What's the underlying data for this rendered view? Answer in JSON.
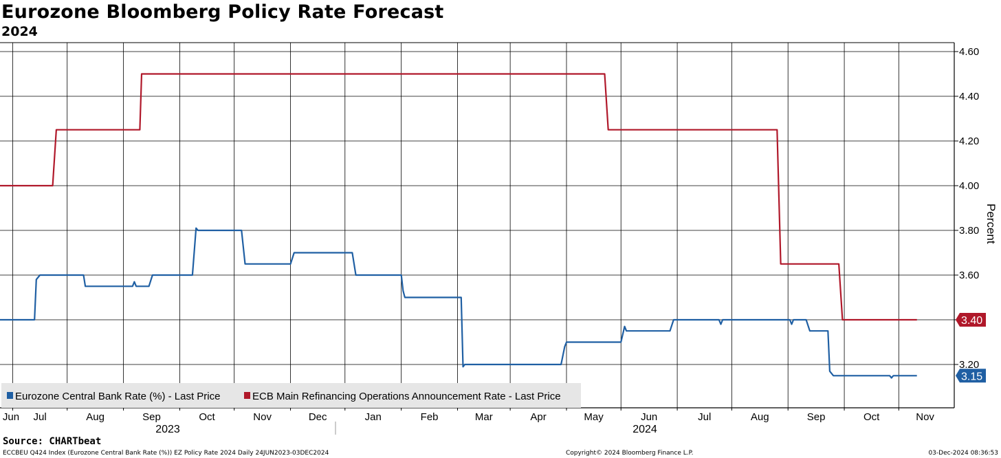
{
  "chart_data": {
    "type": "line",
    "title": "Eurozone Bloomberg Policy Rate Forecast",
    "subtitle": "2024",
    "ylabel": "Percent",
    "ylim": [
      3.05,
      4.63
    ],
    "yticks": [
      "4.60",
      "4.40",
      "4.20",
      "4.00",
      "3.80",
      "3.60",
      "3.40",
      "3.20"
    ],
    "month_labels": [
      "Jun",
      "Jul",
      "Aug",
      "Sep",
      "Oct",
      "Nov",
      "Dec",
      "Jan",
      "Feb",
      "Mar",
      "Apr",
      "May",
      "Jun",
      "Jul",
      "Aug",
      "Sep",
      "Oct",
      "Nov"
    ],
    "year_labels": [
      "2023",
      "2024"
    ],
    "x_range_days": [
      0,
      162,
      524
    ],
    "series": [
      {
        "name": "Eurozone Central Bank Rate (%) - Last Price",
        "color": "#1f5fa3",
        "last_value": "3.15",
        "points": [
          [
            0,
            3.4
          ],
          [
            19,
            3.4
          ],
          [
            20,
            3.58
          ],
          [
            22,
            3.6
          ],
          [
            46,
            3.6
          ],
          [
            47,
            3.55
          ],
          [
            73,
            3.55
          ],
          [
            74,
            3.57
          ],
          [
            75,
            3.55
          ],
          [
            82,
            3.55
          ],
          [
            84,
            3.6
          ],
          [
            106,
            3.6
          ],
          [
            108,
            3.81
          ],
          [
            109,
            3.8
          ],
          [
            133,
            3.8
          ],
          [
            135,
            3.65
          ],
          [
            160,
            3.65
          ],
          [
            162,
            3.7
          ],
          [
            194,
            3.7
          ],
          [
            196,
            3.6
          ],
          [
            221,
            3.6
          ],
          [
            222,
            3.53
          ],
          [
            223,
            3.5
          ],
          [
            254,
            3.5
          ],
          [
            255,
            3.19
          ],
          [
            256,
            3.2
          ],
          [
            309,
            3.2
          ],
          [
            311,
            3.28
          ],
          [
            312,
            3.3
          ],
          [
            342,
            3.3
          ],
          [
            344,
            3.37
          ],
          [
            345,
            3.35
          ],
          [
            369,
            3.35
          ],
          [
            371,
            3.4
          ],
          [
            396,
            3.4
          ],
          [
            397,
            3.38
          ],
          [
            398,
            3.4
          ],
          [
            435,
            3.4
          ],
          [
            436,
            3.38
          ],
          [
            437,
            3.4
          ],
          [
            444,
            3.4
          ],
          [
            446,
            3.35
          ],
          [
            456,
            3.35
          ],
          [
            457,
            3.17
          ],
          [
            459,
            3.15
          ],
          [
            490,
            3.15
          ],
          [
            491,
            3.14
          ],
          [
            492,
            3.15
          ],
          [
            505,
            3.15
          ]
        ]
      },
      {
        "name": "ECB Main Refinancing Operations Announcement Rate - Last Price",
        "color": "#b0182a",
        "last_value": "3.40",
        "points": [
          [
            0,
            4.0
          ],
          [
            29,
            4.0
          ],
          [
            31,
            4.25
          ],
          [
            77,
            4.25
          ],
          [
            78,
            4.5
          ],
          [
            333,
            4.5
          ],
          [
            335,
            4.25
          ],
          [
            428,
            4.25
          ],
          [
            430,
            3.65
          ],
          [
            462,
            3.65
          ],
          [
            464,
            3.4
          ],
          [
            505,
            3.4
          ]
        ]
      }
    ]
  },
  "footer": {
    "source": "Source: CHARTbeat",
    "index_info": "ECCBEU Q424 Index (Eurozone Central Bank Rate (%)) EZ Policy Rate 2024  Daily 24JUN2023-03DEC2024",
    "copyright": "Copyright© 2024 Bloomberg Finance L.P.",
    "timestamp": "03-Dec-2024 08:36:53"
  }
}
